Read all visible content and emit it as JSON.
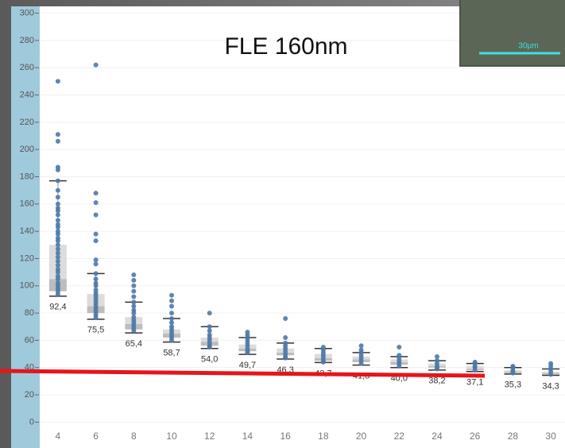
{
  "chart_data": {
    "type": "box",
    "title": "FLE 160nm",
    "scale_bar_label": "30µm",
    "xlim": [
      3.04,
      30.75
    ],
    "xticks": [
      4,
      6,
      8,
      10,
      12,
      14,
      16,
      18,
      20,
      22,
      24,
      26,
      28,
      30
    ],
    "ylim": [
      -19,
      305
    ],
    "yticks": [
      0,
      20,
      40,
      60,
      80,
      100,
      120,
      140,
      160,
      180,
      200,
      220,
      240,
      260,
      280,
      300
    ],
    "grid": true,
    "point_color": "#4e79a7",
    "boxes": [
      {
        "x": 4,
        "min": 92.4,
        "q1": 96,
        "median": 105,
        "q3": 130,
        "max": 177,
        "min_label": "92,4",
        "points": [
          250,
          211,
          206,
          187,
          185,
          177,
          170,
          165,
          160,
          157,
          155,
          152,
          148,
          145,
          143,
          140,
          138,
          135,
          133,
          130,
          127,
          124,
          121,
          118,
          115,
          112,
          110,
          107,
          105,
          102,
          100,
          98,
          96,
          94
        ]
      },
      {
        "x": 6,
        "min": 75.5,
        "q1": 80,
        "median": 85,
        "q3": 94,
        "max": 109,
        "min_label": "75,5",
        "points": [
          262,
          168,
          161,
          152,
          138,
          133,
          119,
          116,
          109,
          105,
          102,
          100,
          97,
          95,
          93,
          91,
          89,
          87,
          85,
          83,
          81,
          79,
          77
        ]
      },
      {
        "x": 8,
        "min": 65.4,
        "q1": 68,
        "median": 72,
        "q3": 77,
        "max": 88,
        "min_label": "65,4",
        "points": [
          108,
          104,
          100,
          96,
          92,
          88,
          85,
          82,
          80,
          77,
          75,
          73,
          71,
          69,
          67
        ]
      },
      {
        "x": 10,
        "min": 58.7,
        "q1": 62,
        "median": 65,
        "q3": 68,
        "max": 76,
        "min_label": "58,7",
        "points": [
          93,
          89,
          85,
          80,
          76,
          73,
          70,
          68,
          66,
          64,
          62,
          60
        ]
      },
      {
        "x": 12,
        "min": 54.0,
        "q1": 56,
        "median": 59,
        "q3": 62,
        "max": 70,
        "min_label": "54,0",
        "points": [
          80,
          70,
          67,
          64,
          62,
          60,
          58,
          56,
          55
        ]
      },
      {
        "x": 14,
        "min": 49.7,
        "q1": 52,
        "median": 54,
        "q3": 57,
        "max": 62,
        "min_label": "49,7",
        "points": [
          66,
          64,
          62,
          60,
          58,
          56,
          54,
          52,
          51
        ]
      },
      {
        "x": 16,
        "min": 46.3,
        "q1": 49,
        "median": 51,
        "q3": 54,
        "max": 58,
        "min_label": "46,3",
        "points": [
          76,
          62,
          58,
          56,
          54,
          52,
          50,
          48,
          47
        ]
      },
      {
        "x": 18,
        "min": 43.7,
        "q1": 45,
        "median": 47,
        "q3": 50,
        "max": 54,
        "min_label": "43,7",
        "points": [
          55,
          53,
          51,
          49,
          47,
          45,
          44
        ]
      },
      {
        "x": 20,
        "min": 41.8,
        "q1": 44,
        "median": 46,
        "q3": 48,
        "max": 51,
        "min_label": "41,8",
        "points": [
          56,
          53,
          51,
          49,
          47,
          45,
          43
        ]
      },
      {
        "x": 22,
        "min": 40.0,
        "q1": 42,
        "median": 44,
        "q3": 46,
        "max": 48,
        "min_label": "40,0",
        "points": [
          55,
          49,
          47,
          45,
          43,
          41
        ]
      },
      {
        "x": 24,
        "min": 38.2,
        "q1": 40,
        "median": 41,
        "q3": 43,
        "max": 45,
        "min_label": "38,2",
        "points": [
          48,
          45,
          43,
          41,
          40,
          39
        ]
      },
      {
        "x": 26,
        "min": 37.1,
        "q1": 38,
        "median": 39,
        "q3": 41,
        "max": 43,
        "min_label": "37,1",
        "points": [
          44,
          43,
          41,
          40,
          38
        ]
      },
      {
        "x": 28,
        "min": 35.3,
        "q1": 36,
        "median": 37,
        "q3": 38,
        "max": 40,
        "min_label": "35,3",
        "points": [
          41,
          40,
          38,
          37,
          36
        ]
      },
      {
        "x": 30,
        "min": 34.3,
        "q1": 35,
        "median": 36,
        "q3": 37,
        "max": 39,
        "min_label": "34,3",
        "points": [
          43,
          41,
          39,
          37,
          35
        ]
      }
    ]
  }
}
